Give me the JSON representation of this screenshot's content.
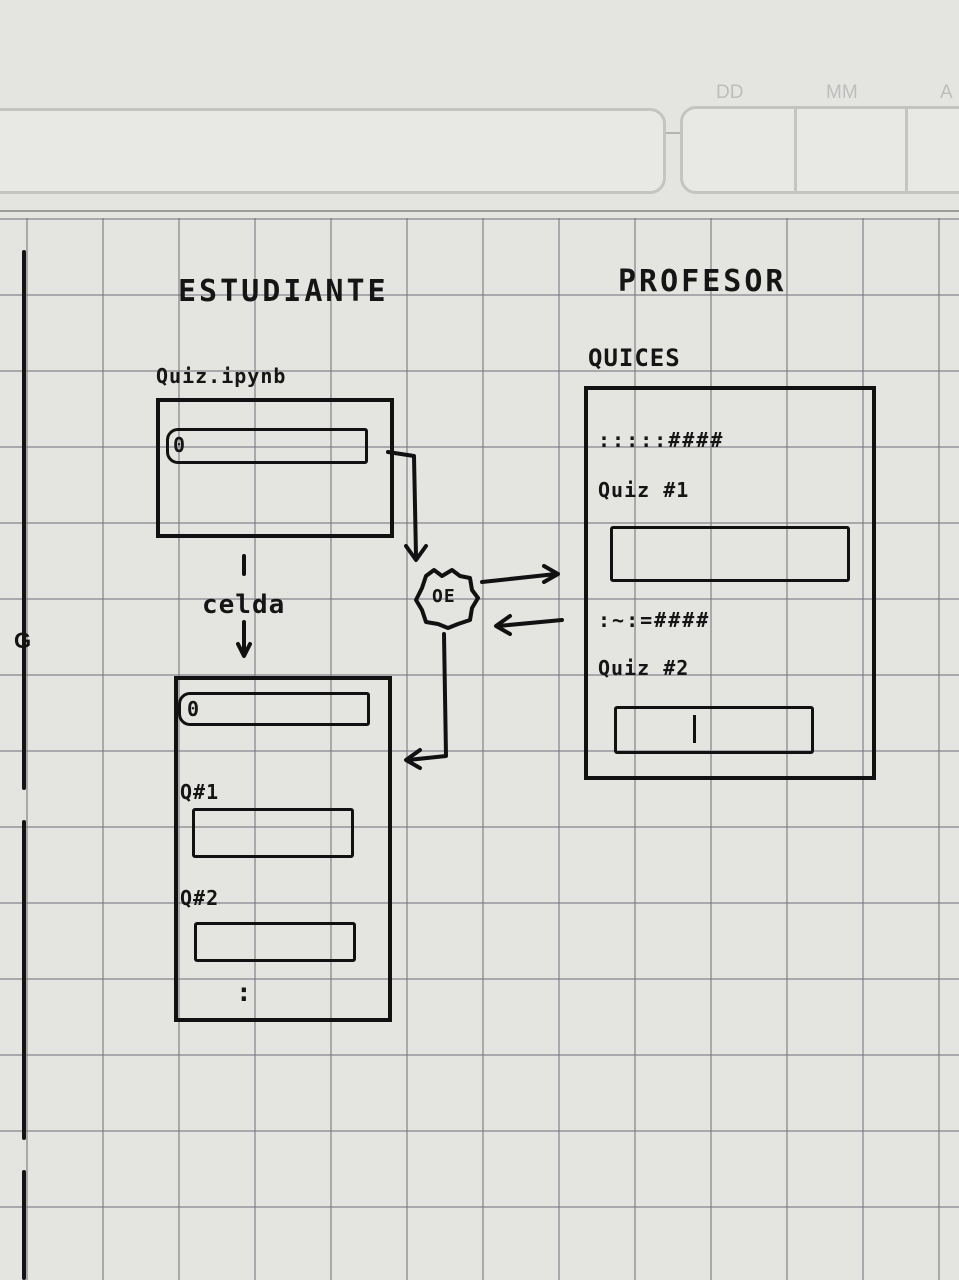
{
  "header": {
    "date_labels": [
      "DD",
      "MM",
      "A"
    ]
  },
  "margin": {
    "marks": [
      "G"
    ]
  },
  "estudiante": {
    "title": "ESTUDIANTE",
    "notebook_label": "Quiz.ipynb",
    "notebook_field_value": "0",
    "cell_label": "celda",
    "cells": {
      "first_field_value": "0",
      "q1_label": "Q#1",
      "q2_label": "Q#2",
      "continuation": ":"
    }
  },
  "profesor": {
    "title": "PROFESOR",
    "section_label": "QUICES",
    "items": [
      {
        "hash": ":::::####",
        "label": "Quiz #1"
      },
      {
        "hash": ":~:=####",
        "label": "Quiz #2"
      }
    ]
  },
  "engine": {
    "icon": "gear-icon",
    "text": "OE"
  },
  "colors": {
    "ink": "#151515",
    "paper": "#e4e4e1",
    "grid": "#8a8a96"
  }
}
